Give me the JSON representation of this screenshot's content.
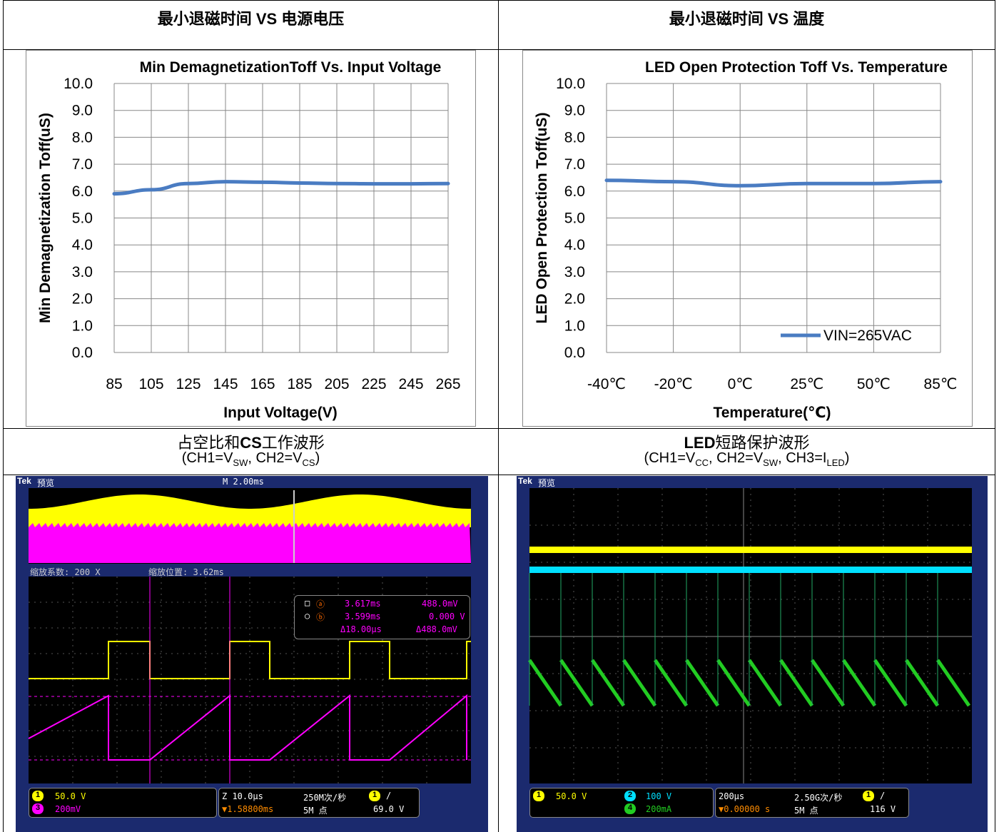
{
  "cells": {
    "tl_title": "最小退磁时间 VS 电源电压",
    "tr_title": "最小退磁时间 VS 温度",
    "bl_title_a": "占空比和",
    "bl_title_b": "CS",
    "bl_title_c": "工作波形",
    "bl_sub": "(CH1=VSW, CH2=VCS)",
    "br_title_a": "LED",
    "br_title_b": "短路保护波形",
    "br_sub": "(CH1=VCC, CH2=VSW, CH3=ILED)"
  },
  "chart_data": [
    {
      "type": "line",
      "title": "Min DemagnetizationToff Vs. Input Voltage",
      "xlabel": "Input Voltage(V)",
      "ylabel": "Min Demagnetization Toff(uS)",
      "categories": [
        "85",
        "105",
        "125",
        "145",
        "165",
        "185",
        "205",
        "225",
        "245",
        "265"
      ],
      "series": [
        {
          "values": [
            5.9,
            6.05,
            6.28,
            6.35,
            6.33,
            6.3,
            6.28,
            6.27,
            6.27,
            6.28
          ]
        }
      ],
      "ylim": [
        0,
        10
      ],
      "yticks": [
        "0.0",
        "1.0",
        "2.0",
        "3.0",
        "4.0",
        "5.0",
        "6.0",
        "7.0",
        "8.0",
        "9.0",
        "10.0"
      ],
      "grid": true,
      "color": "#4a7cc2"
    },
    {
      "type": "line",
      "title": "LED Open Protection Toff  Vs. Temperature",
      "xlabel": "Temperature(℃)",
      "ylabel": "LED Open Protection Toff(uS)",
      "categories": [
        "-40℃",
        "-20℃",
        "0℃",
        "25℃",
        "50℃",
        "85℃"
      ],
      "series": [
        {
          "name": "VIN=265VAC",
          "values": [
            6.4,
            6.35,
            6.2,
            6.28,
            6.28,
            6.35
          ]
        }
      ],
      "ylim": [
        0,
        10
      ],
      "yticks": [
        "0.0",
        "1.0",
        "2.0",
        "3.0",
        "4.0",
        "5.0",
        "6.0",
        "7.0",
        "8.0",
        "9.0",
        "10.0"
      ],
      "grid": true,
      "legend": "bottom-right",
      "color": "#4a7cc2"
    }
  ],
  "scope_left": {
    "brand": "Tek",
    "mode": "预览",
    "timebase": "M 2.00ms",
    "zoom_factor": "缩放系数: 200 X",
    "zoom_pos": "缩放位置: 3.62ms",
    "cursor_a_time": "3.617ms",
    "cursor_a_volt": "488.0mV",
    "cursor_b_time": "3.599ms",
    "cursor_b_volt": "0.000 V",
    "delta_time": "Δ18.00μs",
    "delta_volt": "Δ488.0mV",
    "ch1_scale": "50.0 V",
    "ch3_scale": "200mV",
    "zoom_scale": "Z 10.0μs",
    "sample_rate": "250M次/秒",
    "trigger_pos": "▼1.58800ms",
    "record_len": "5M 点",
    "trigger_level": "69.0 V",
    "colors": {
      "ch1": "#ffff00",
      "ch3": "#ff00ff"
    }
  },
  "scope_right": {
    "brand": "Tek",
    "mode": "预览",
    "ch1_scale": "50.0 V",
    "ch2_scale": "100 V",
    "ch4_scale": "200mA",
    "timebase": "200μs",
    "sample_rate": "2.50G次/秒",
    "trigger_pos": "▼0.00000 s",
    "record_len": "5M 点",
    "trigger_level": "116 V",
    "colors": {
      "ch1": "#ffff00",
      "ch2": "#00e0ff",
      "ch4": "#22cc22"
    }
  }
}
